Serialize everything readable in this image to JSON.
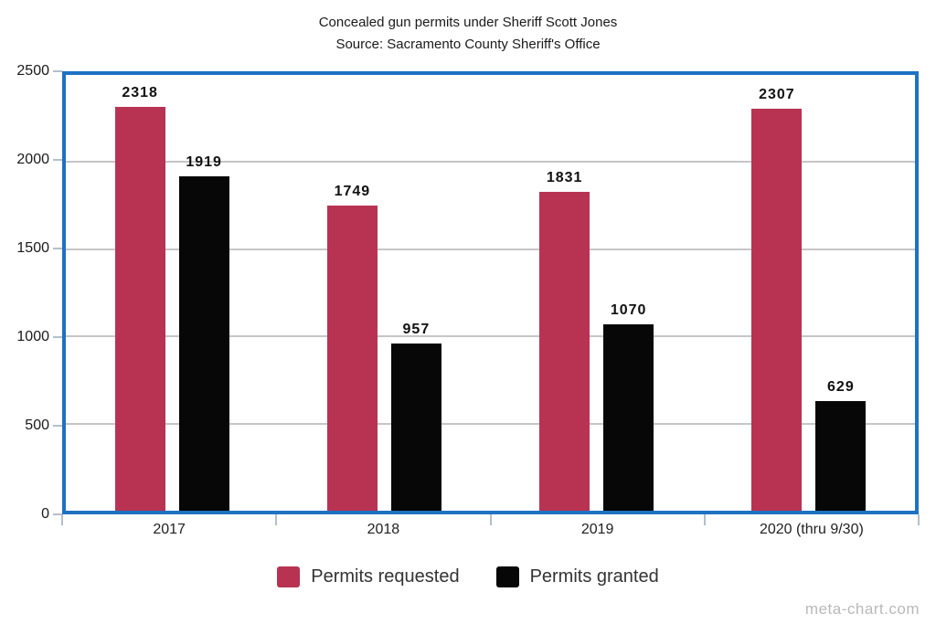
{
  "watermark": "meta-chart.com",
  "colors": {
    "plot_border": "#1d72c2",
    "gridline": "#c6c6c6",
    "tick": "#b4bfc9",
    "value_label": "#111111"
  },
  "chart_data": {
    "type": "bar",
    "title": "Concealed gun permits under Sheriff Scott Jones",
    "subtitle": "Source: Sacramento County Sheriff's Office",
    "categories": [
      "2017",
      "2018",
      "2019",
      "2020 (thru 9/30)"
    ],
    "series": [
      {
        "name": "Permits requested",
        "color": "#b83352",
        "values": [
          2318,
          1749,
          1831,
          2307
        ]
      },
      {
        "name": "Permits granted",
        "color": "#070707",
        "values": [
          1919,
          957,
          1070,
          629
        ]
      }
    ],
    "xlabel": "",
    "ylabel": "",
    "ylim": [
      0,
      2500
    ],
    "yticks": [
      0,
      500,
      1000,
      1500,
      2000,
      2500
    ],
    "grid": true,
    "bar_value_labels": true,
    "legend_position": "bottom"
  }
}
